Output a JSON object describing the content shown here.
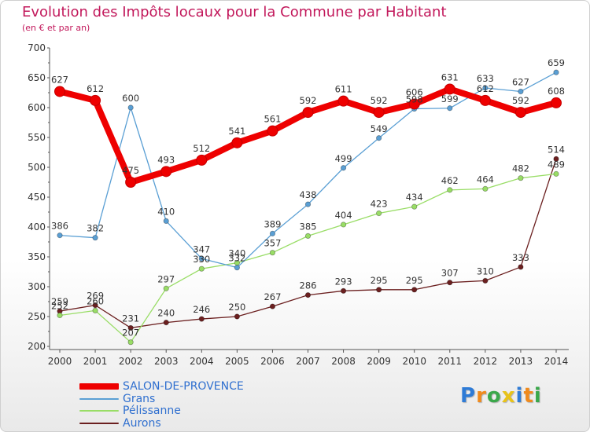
{
  "chart_data": {
    "type": "line",
    "title": "Evolution des Impôts locaux pour la Commune par Habitant",
    "subtitle": "(en € et par an)",
    "x": [
      "2000",
      "2001",
      "2002",
      "2003",
      "2004",
      "2005",
      "2006",
      "2007",
      "2008",
      "2009",
      "2010",
      "2011",
      "2012",
      "2013",
      "2014"
    ],
    "ylim": [
      200,
      700
    ],
    "yticks": [
      200,
      250,
      300,
      350,
      400,
      450,
      500,
      550,
      600,
      650,
      700
    ],
    "grid": false,
    "legend": "bottom-left",
    "series": [
      {
        "name": "SALON-DE-PROVENCE",
        "color": "#ee0000",
        "values": [
          627,
          612,
          475,
          493,
          512,
          541,
          561,
          592,
          611,
          592,
          606,
          631,
          612,
          592,
          608
        ]
      },
      {
        "name": "Grans",
        "color": "#5a9fd4",
        "values": [
          386,
          382,
          600,
          410,
          347,
          332,
          389,
          438,
          499,
          549,
          598,
          599,
          633,
          627,
          659
        ]
      },
      {
        "name": "Pélissanne",
        "color": "#99dd66",
        "values": [
          252,
          260,
          207,
          297,
          330,
          340,
          357,
          385,
          404,
          423,
          434,
          462,
          464,
          482,
          489
        ]
      },
      {
        "name": "Aurons",
        "color": "#6b1f1f",
        "values": [
          259,
          269,
          231,
          240,
          246,
          250,
          267,
          286,
          293,
          295,
          295,
          307,
          310,
          333,
          514
        ]
      }
    ]
  },
  "brand": {
    "letters": [
      "P",
      "r",
      "o",
      "x",
      "i",
      "t",
      "i"
    ],
    "colors": [
      "#2e7bd6",
      "#f08a1c",
      "#3aa84a",
      "#e8c31a",
      "#2e7bd6",
      "#f08a1c",
      "#3aa84a"
    ]
  }
}
